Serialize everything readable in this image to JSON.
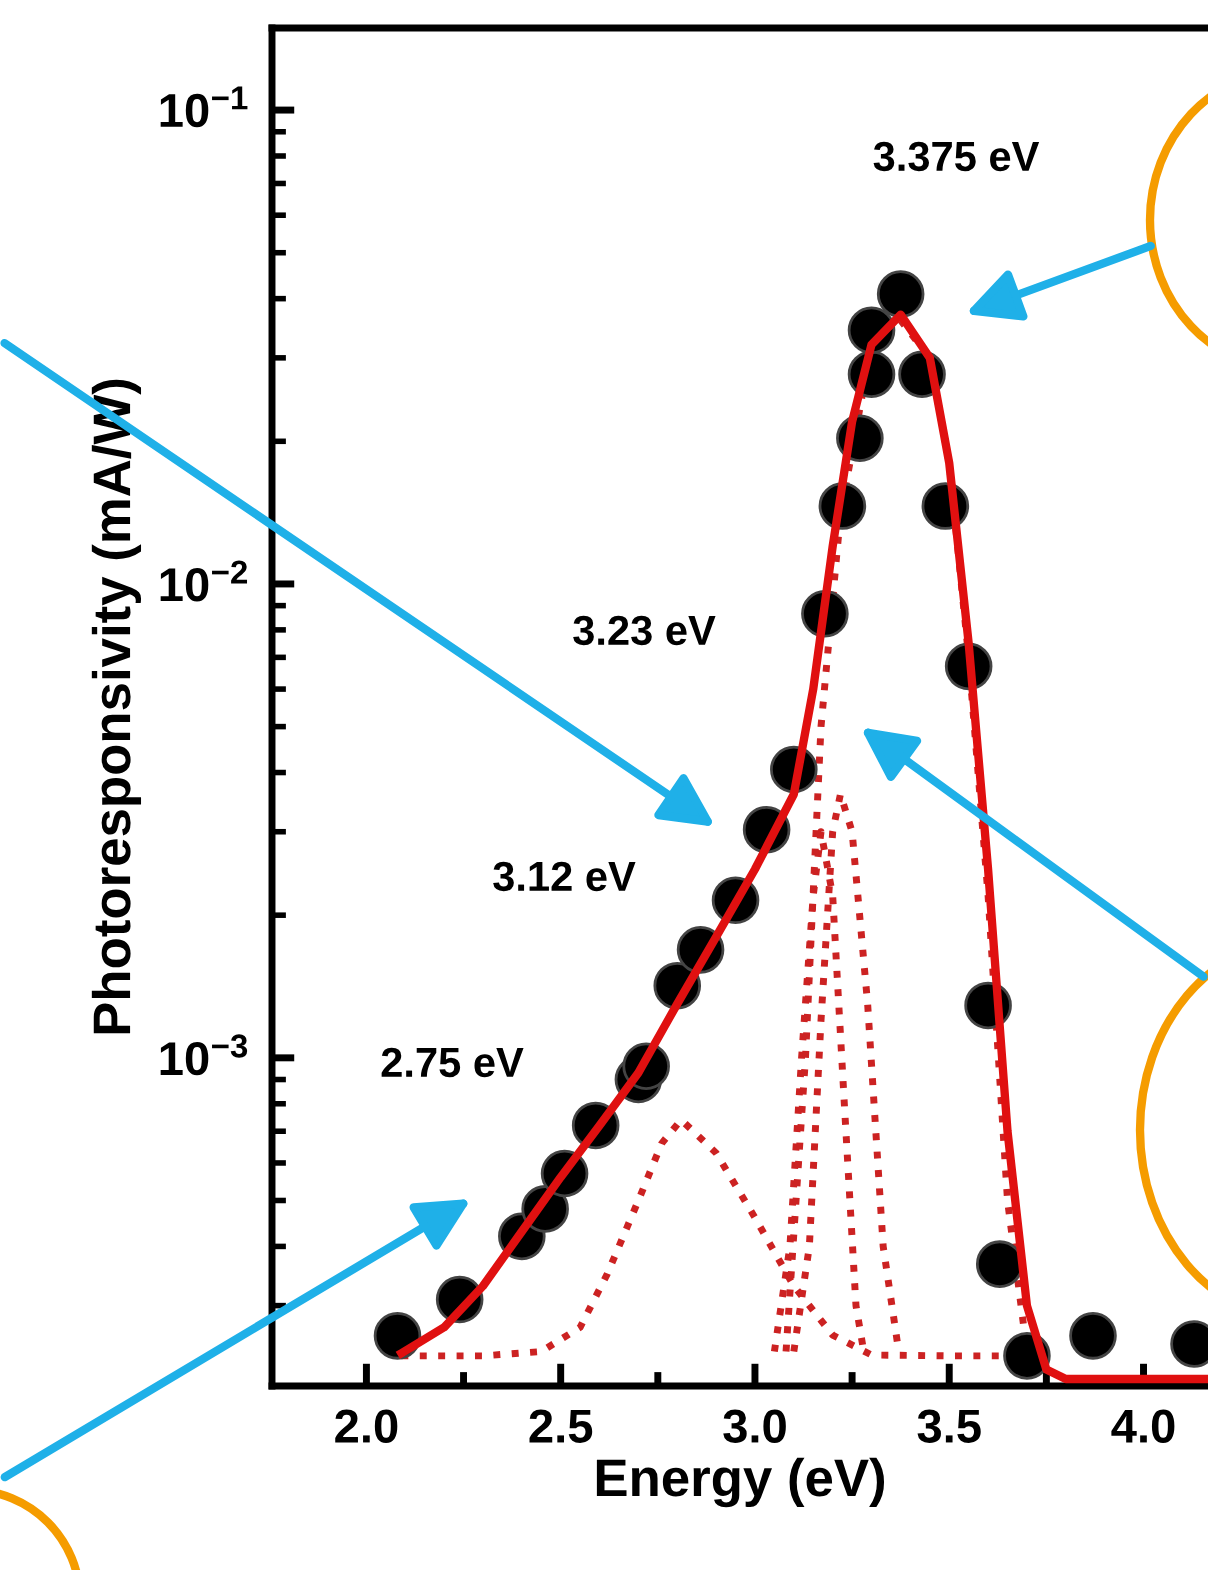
{
  "chart_data": {
    "type": "scatter",
    "xlabel": "Energy (eV)",
    "ylabel": "Photoresponsivity (mA/W)",
    "log": "y",
    "xlim": [
      1.757,
      4.166
    ],
    "ylim": [
      0.000203,
      0.149
    ],
    "xticks": [
      {
        "value": 2.0,
        "label": "2.0"
      },
      {
        "value": 2.25,
        "label": null
      },
      {
        "value": 2.5,
        "label": "2.5"
      },
      {
        "value": 2.75,
        "label": null
      },
      {
        "value": 3.0,
        "label": "3.0"
      },
      {
        "value": 3.25,
        "label": null
      },
      {
        "value": 3.5,
        "label": "3.5"
      },
      {
        "value": 3.75,
        "label": null
      },
      {
        "value": 4.0,
        "label": "4.0"
      }
    ],
    "yticks": [
      {
        "value": 0.001,
        "label": "10$^{−3}$"
      },
      {
        "value": 0.01,
        "label": "10$^{−2}$"
      },
      {
        "value": 0.1,
        "label": "10$^{−1}$"
      }
    ],
    "grid": false,
    "series": [
      {
        "type": "line",
        "color": "#cc2222",
        "line_style": "dotted",
        "x": [
          2.09,
          2.3,
          2.45,
          2.55,
          2.62,
          2.7,
          2.76,
          2.81,
          2.9,
          3.0,
          3.1,
          3.2,
          3.3,
          3.5,
          3.75
        ],
        "values": [
          0.000235,
          0.000235,
          0.00024,
          0.00027,
          0.00035,
          0.0005,
          0.00066,
          0.00074,
          0.00063,
          0.00046,
          0.00033,
          0.00026,
          0.000236,
          0.000235,
          0.000235
        ]
      },
      {
        "type": "line",
        "color": "#cc2222",
        "line_style": "dotted",
        "x": [
          3.05,
          3.09,
          3.12,
          3.15,
          3.17,
          3.2,
          3.23,
          3.26,
          3.28
        ],
        "values": [
          0.00024,
          0.0004,
          0.001,
          0.0022,
          0.003,
          0.0022,
          0.0008,
          0.0003,
          0.00024
        ]
      },
      {
        "type": "line",
        "color": "#cc2222",
        "line_style": "dotted",
        "x": [
          3.1,
          3.14,
          3.17,
          3.2,
          3.22,
          3.25,
          3.29,
          3.33,
          3.37
        ],
        "values": [
          0.00024,
          0.0004,
          0.0012,
          0.003,
          0.0036,
          0.003,
          0.0013,
          0.0004,
          0.00024
        ]
      },
      {
        "type": "line",
        "color": "#cc2222",
        "line_style": "dotted",
        "x": [
          3.08,
          3.13,
          3.17,
          3.22,
          3.3,
          3.375,
          3.45,
          3.5,
          3.55,
          3.6,
          3.65,
          3.7
        ],
        "values": [
          0.00024,
          0.001,
          0.005,
          0.014,
          0.032,
          0.036,
          0.03,
          0.018,
          0.007,
          0.0022,
          0.0005,
          0.00024
        ]
      },
      {
        "color": "#000000",
        "marker": "circle",
        "x": [
          2.08,
          2.24,
          2.4,
          2.46,
          2.51,
          2.59,
          2.7,
          2.72,
          2.8,
          2.86,
          2.95,
          3.03,
          3.1,
          3.18,
          3.225,
          3.27,
          3.3,
          3.3,
          3.375,
          3.43,
          3.49,
          3.55,
          3.6,
          3.63,
          3.7,
          3.87,
          4.13
        ],
        "values": [
          0.000259,
          0.000309,
          0.00042,
          0.00048,
          0.00057,
          0.00072,
          0.0009,
          0.00096,
          0.00142,
          0.00169,
          0.00215,
          0.00303,
          0.00406,
          0.00865,
          0.0146,
          0.0203,
          0.0277,
          0.0343,
          0.0409,
          0.0277,
          0.0146,
          0.0067,
          0.00129,
          0.000367,
          0.000235,
          0.000259,
          0.000249
        ]
      },
      {
        "type": "line",
        "color": "#e01010",
        "line_style": "solid",
        "x": [
          2.09,
          2.2,
          2.3,
          2.4,
          2.5,
          2.6,
          2.7,
          2.8,
          2.9,
          3.0,
          3.1,
          3.15,
          3.2,
          3.25,
          3.3,
          3.375,
          3.45,
          3.5,
          3.55,
          3.6,
          3.65,
          3.7,
          3.75,
          3.8,
          4.166
        ],
        "values": [
          0.000238,
          0.00027,
          0.00033,
          0.00043,
          0.00056,
          0.00072,
          0.00093,
          0.0013,
          0.0018,
          0.0025,
          0.0036,
          0.006,
          0.012,
          0.022,
          0.032,
          0.037,
          0.03,
          0.018,
          0.0075,
          0.0025,
          0.0007,
          0.0003,
          0.00022,
          0.00021,
          0.00021
        ]
      }
    ],
    "annotations": [
      "3.375 eV",
      "3.23 eV",
      "3.12 eV",
      "2.75 eV"
    ]
  }
}
